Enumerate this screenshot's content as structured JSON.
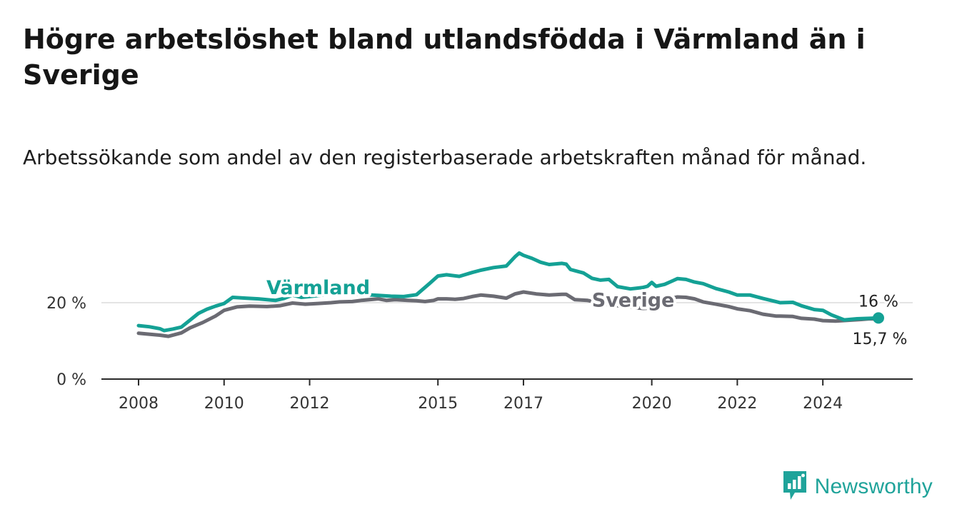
{
  "title": "Högre arbetslöshet bland utlandsfödda i Värmland än i Sverige",
  "subtitle": "Arbetssökande som andel av den registerbaserade arbetskraften månad för månad.",
  "brand": {
    "name": "Newsworthy",
    "icon": "newsworthy-logo-icon",
    "color": "#1fa39a"
  },
  "chart_data": {
    "type": "line",
    "xlim": [
      2007.6,
      2025.8
    ],
    "ylim": [
      0,
      35
    ],
    "x_ticks": [
      2008,
      2010,
      2012,
      2015,
      2017,
      2020,
      2022,
      2024
    ],
    "x_tick_labels": [
      "2008",
      "2010",
      "2012",
      "2015",
      "2017",
      "2020",
      "2022",
      "2024"
    ],
    "y_ticks": [
      0,
      20
    ],
    "y_tick_labels": [
      "0 %",
      "20 %"
    ],
    "grid": {
      "y": true,
      "x": false
    },
    "series": [
      {
        "name": "Värmland",
        "color": "#14a195",
        "label_at": [
          2012.2,
          22.2
        ],
        "end_label": "16 %",
        "end_marker": true,
        "points": [
          [
            2008.0,
            14.0
          ],
          [
            2008.25,
            13.7
          ],
          [
            2008.5,
            13.2
          ],
          [
            2008.6,
            12.7
          ],
          [
            2008.8,
            13.1
          ],
          [
            2009.0,
            13.6
          ],
          [
            2009.2,
            15.4
          ],
          [
            2009.4,
            17.2
          ],
          [
            2009.6,
            18.3
          ],
          [
            2009.8,
            19.1
          ],
          [
            2010.0,
            19.8
          ],
          [
            2010.2,
            21.4
          ],
          [
            2010.5,
            21.2
          ],
          [
            2010.8,
            21.0
          ],
          [
            2011.2,
            20.6
          ],
          [
            2011.4,
            21.1
          ],
          [
            2011.6,
            22.0
          ],
          [
            2011.8,
            21.4
          ],
          [
            2012.0,
            21.6
          ],
          [
            2012.3,
            22.0
          ],
          [
            2012.5,
            22.3
          ],
          [
            2012.8,
            22.2
          ],
          [
            2013.0,
            22.3
          ],
          [
            2013.3,
            22.1
          ],
          [
            2013.6,
            21.9
          ],
          [
            2013.9,
            21.7
          ],
          [
            2014.2,
            21.6
          ],
          [
            2014.5,
            22.1
          ],
          [
            2014.8,
            25.0
          ],
          [
            2015.0,
            27.0
          ],
          [
            2015.2,
            27.3
          ],
          [
            2015.5,
            26.9
          ],
          [
            2015.8,
            27.9
          ],
          [
            2016.0,
            28.5
          ],
          [
            2016.3,
            29.2
          ],
          [
            2016.6,
            29.6
          ],
          [
            2016.8,
            32.0
          ],
          [
            2016.9,
            33.0
          ],
          [
            2017.0,
            32.4
          ],
          [
            2017.2,
            31.6
          ],
          [
            2017.4,
            30.6
          ],
          [
            2017.6,
            30.0
          ],
          [
            2017.9,
            30.3
          ],
          [
            2018.0,
            30.1
          ],
          [
            2018.1,
            28.7
          ],
          [
            2018.4,
            27.8
          ],
          [
            2018.6,
            26.4
          ],
          [
            2018.8,
            25.9
          ],
          [
            2019.0,
            26.1
          ],
          [
            2019.2,
            24.2
          ],
          [
            2019.5,
            23.6
          ],
          [
            2019.8,
            24.0
          ],
          [
            2019.9,
            24.3
          ],
          [
            2020.0,
            25.3
          ],
          [
            2020.1,
            24.3
          ],
          [
            2020.3,
            24.8
          ],
          [
            2020.5,
            25.8
          ],
          [
            2020.6,
            26.3
          ],
          [
            2020.8,
            26.1
          ],
          [
            2021.0,
            25.4
          ],
          [
            2021.2,
            25.0
          ],
          [
            2021.5,
            23.7
          ],
          [
            2021.8,
            22.8
          ],
          [
            2022.0,
            22.0
          ],
          [
            2022.3,
            22.0
          ],
          [
            2022.6,
            21.1
          ],
          [
            2022.9,
            20.3
          ],
          [
            2023.0,
            20.0
          ],
          [
            2023.3,
            20.1
          ],
          [
            2023.5,
            19.2
          ],
          [
            2023.8,
            18.2
          ],
          [
            2024.0,
            18.0
          ],
          [
            2024.2,
            16.8
          ],
          [
            2024.5,
            15.5
          ],
          [
            2024.8,
            15.8
          ],
          [
            2025.1,
            15.9
          ],
          [
            2025.3,
            16.0
          ]
        ]
      },
      {
        "name": "Sverige",
        "color": "#6b6b73",
        "label_at": [
          2018.6,
          19.0
        ],
        "end_label": "15,7 %",
        "end_marker": false,
        "points": [
          [
            2008.0,
            12.0
          ],
          [
            2008.2,
            11.8
          ],
          [
            2008.5,
            11.5
          ],
          [
            2008.7,
            11.2
          ],
          [
            2009.0,
            12.1
          ],
          [
            2009.2,
            13.4
          ],
          [
            2009.5,
            14.8
          ],
          [
            2009.8,
            16.5
          ],
          [
            2010.0,
            18.0
          ],
          [
            2010.3,
            18.9
          ],
          [
            2010.6,
            19.1
          ],
          [
            2011.0,
            19.0
          ],
          [
            2011.3,
            19.2
          ],
          [
            2011.6,
            19.9
          ],
          [
            2011.9,
            19.6
          ],
          [
            2012.2,
            19.8
          ],
          [
            2012.5,
            20.0
          ],
          [
            2012.7,
            20.2
          ],
          [
            2013.0,
            20.3
          ],
          [
            2013.2,
            20.6
          ],
          [
            2013.6,
            21.0
          ],
          [
            2013.8,
            20.6
          ],
          [
            2014.0,
            20.8
          ],
          [
            2014.3,
            20.6
          ],
          [
            2014.5,
            20.5
          ],
          [
            2014.7,
            20.3
          ],
          [
            2014.9,
            20.6
          ],
          [
            2015.0,
            21.0
          ],
          [
            2015.2,
            21.0
          ],
          [
            2015.4,
            20.9
          ],
          [
            2015.6,
            21.1
          ],
          [
            2015.8,
            21.6
          ],
          [
            2016.0,
            22.0
          ],
          [
            2016.3,
            21.7
          ],
          [
            2016.6,
            21.2
          ],
          [
            2016.8,
            22.3
          ],
          [
            2017.0,
            22.8
          ],
          [
            2017.3,
            22.3
          ],
          [
            2017.6,
            22.0
          ],
          [
            2017.9,
            22.2
          ],
          [
            2018.0,
            22.2
          ],
          [
            2018.2,
            20.8
          ],
          [
            2018.5,
            20.6
          ],
          [
            2019.0,
            19.5
          ],
          [
            2019.5,
            18.8
          ],
          [
            2019.8,
            18.5
          ],
          [
            2020.0,
            18.6
          ],
          [
            2020.2,
            19.8
          ],
          [
            2020.4,
            21.0
          ],
          [
            2020.6,
            21.5
          ],
          [
            2020.8,
            21.4
          ],
          [
            2021.0,
            21.0
          ],
          [
            2021.2,
            20.2
          ],
          [
            2021.5,
            19.6
          ],
          [
            2021.8,
            19.0
          ],
          [
            2022.0,
            18.4
          ],
          [
            2022.3,
            17.9
          ],
          [
            2022.6,
            17.0
          ],
          [
            2022.9,
            16.5
          ],
          [
            2023.0,
            16.5
          ],
          [
            2023.3,
            16.4
          ],
          [
            2023.5,
            15.9
          ],
          [
            2023.8,
            15.7
          ],
          [
            2024.0,
            15.3
          ],
          [
            2024.3,
            15.2
          ],
          [
            2024.6,
            15.4
          ],
          [
            2024.9,
            15.6
          ],
          [
            2025.1,
            15.8
          ],
          [
            2025.3,
            15.7
          ]
        ]
      }
    ]
  }
}
